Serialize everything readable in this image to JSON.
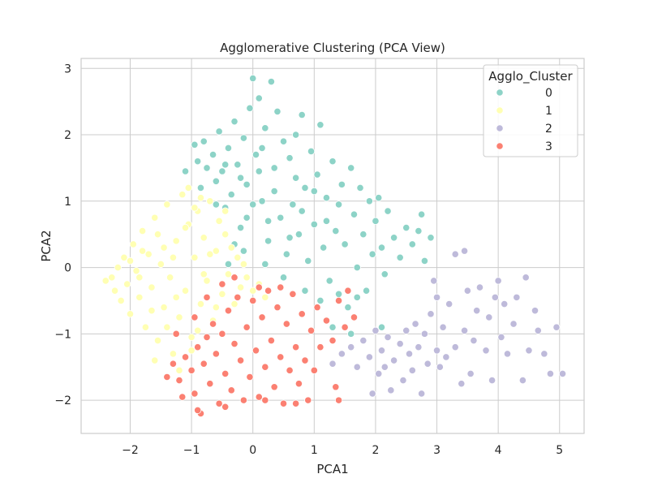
{
  "chart_data": {
    "type": "scatter",
    "title": "Agglomerative Clustering (PCA View)",
    "xlabel": "PCA1",
    "ylabel": "PCA2",
    "xlim": [
      -2.8,
      5.4
    ],
    "ylim": [
      -2.5,
      3.15
    ],
    "xticks": [
      "−2",
      "−1",
      "0",
      "1",
      "2",
      "3",
      "4",
      "5"
    ],
    "xtick_values": [
      -2,
      -1,
      0,
      1,
      2,
      3,
      4,
      5
    ],
    "yticks": [
      "−2",
      "−1",
      "0",
      "1",
      "2",
      "3"
    ],
    "ytick_values": [
      -2,
      -1,
      0,
      1,
      2,
      3
    ],
    "grid": true,
    "legend": {
      "title": "Agglo_Cluster",
      "position": "top-right",
      "labels": [
        "0",
        "1",
        "2",
        "3"
      ]
    },
    "colors": [
      "#8dd3c7",
      "#ffffb3",
      "#bebada",
      "#fb8072"
    ],
    "series": [
      {
        "name": "0",
        "points": [
          [
            -1.1,
            1.45
          ],
          [
            -0.95,
            1.85
          ],
          [
            -0.9,
            1.6
          ],
          [
            -0.85,
            1.2
          ],
          [
            -0.8,
            1.9
          ],
          [
            -0.75,
            1.5
          ],
          [
            -0.7,
            1.0
          ],
          [
            -0.65,
            1.7
          ],
          [
            -0.6,
            1.3
          ],
          [
            -0.55,
            2.05
          ],
          [
            -0.5,
            1.45
          ],
          [
            -0.45,
            0.9
          ],
          [
            -0.4,
            1.8
          ],
          [
            -0.35,
            1.1
          ],
          [
            -0.3,
            2.2
          ],
          [
            -0.25,
            1.55
          ],
          [
            -0.2,
            0.6
          ],
          [
            -0.15,
            1.95
          ],
          [
            -0.1,
            1.25
          ],
          [
            -0.05,
            2.4
          ],
          [
            0.0,
            2.85
          ],
          [
            0.05,
            1.7
          ],
          [
            0.1,
            2.55
          ],
          [
            0.15,
            1.0
          ],
          [
            0.2,
            2.1
          ],
          [
            0.25,
            0.4
          ],
          [
            0.3,
            2.8
          ],
          [
            0.35,
            1.5
          ],
          [
            0.4,
            2.35
          ],
          [
            0.45,
            0.75
          ],
          [
            0.5,
            1.9
          ],
          [
            0.55,
            0.2
          ],
          [
            0.6,
            1.65
          ],
          [
            0.65,
            0.95
          ],
          [
            0.7,
            2.0
          ],
          [
            0.75,
            0.5
          ],
          [
            0.8,
            2.3
          ],
          [
            0.85,
            1.2
          ],
          [
            0.9,
            0.1
          ],
          [
            0.95,
            1.75
          ],
          [
            1.0,
            0.65
          ],
          [
            1.05,
            1.4
          ],
          [
            1.1,
            2.15
          ],
          [
            1.15,
            0.3
          ],
          [
            1.2,
            1.05
          ],
          [
            1.25,
            -0.2
          ],
          [
            1.3,
            1.6
          ],
          [
            1.35,
            0.55
          ],
          [
            1.4,
            -0.4
          ],
          [
            1.45,
            1.25
          ],
          [
            1.5,
            0.35
          ],
          [
            1.55,
            -0.6
          ],
          [
            1.6,
            1.5
          ],
          [
            1.65,
            0.8
          ],
          [
            1.7,
            0.0
          ],
          [
            1.75,
            1.2
          ],
          [
            1.8,
            0.5
          ],
          [
            1.85,
            -0.35
          ],
          [
            1.9,
            1.0
          ],
          [
            1.95,
            0.2
          ],
          [
            2.0,
            0.7
          ],
          [
            2.05,
            1.05
          ],
          [
            2.1,
            0.3
          ],
          [
            2.15,
            -0.1
          ],
          [
            2.2,
            0.85
          ],
          [
            2.3,
            0.45
          ],
          [
            2.4,
            0.15
          ],
          [
            2.5,
            0.6
          ],
          [
            2.6,
            0.35
          ],
          [
            2.7,
            0.55
          ],
          [
            2.75,
            0.8
          ],
          [
            2.8,
            0.1
          ],
          [
            2.9,
            0.45
          ],
          [
            -0.6,
            0.95
          ],
          [
            -0.3,
            0.35
          ],
          [
            0.0,
            0.95
          ],
          [
            -0.2,
            1.35
          ],
          [
            0.1,
            1.45
          ],
          [
            0.35,
            1.15
          ],
          [
            0.6,
            0.45
          ],
          [
            0.8,
            0.85
          ],
          [
            1.0,
            1.15
          ],
          [
            1.2,
            0.7
          ],
          [
            1.4,
            0.95
          ],
          [
            0.2,
            0.05
          ],
          [
            0.5,
            -0.15
          ],
          [
            0.85,
            -0.35
          ],
          [
            1.1,
            -0.5
          ],
          [
            1.3,
            -0.9
          ],
          [
            1.6,
            -1.0
          ],
          [
            2.1,
            -0.9
          ],
          [
            -0.4,
            0.05
          ],
          [
            -0.15,
            0.25
          ],
          [
            0.25,
            0.7
          ],
          [
            0.7,
            1.35
          ],
          [
            0.15,
            1.8
          ],
          [
            -0.45,
            1.55
          ],
          [
            -0.1,
            0.75
          ],
          [
            1.7,
            -0.45
          ]
        ]
      },
      {
        "name": "1",
        "points": [
          [
            -2.4,
            -0.2
          ],
          [
            -2.3,
            -0.15
          ],
          [
            -2.25,
            -0.35
          ],
          [
            -2.2,
            0.0
          ],
          [
            -2.15,
            -0.5
          ],
          [
            -2.1,
            0.15
          ],
          [
            -2.05,
            -0.25
          ],
          [
            -2.0,
            -0.7
          ],
          [
            -1.95,
            0.35
          ],
          [
            -1.9,
            -0.05
          ],
          [
            -1.85,
            -0.45
          ],
          [
            -1.8,
            0.55
          ],
          [
            -1.75,
            -0.9
          ],
          [
            -1.7,
            0.2
          ],
          [
            -1.65,
            -0.3
          ],
          [
            -1.6,
            0.75
          ],
          [
            -1.55,
            -1.1
          ],
          [
            -1.5,
            0.05
          ],
          [
            -1.45,
            -0.6
          ],
          [
            -1.4,
            0.95
          ],
          [
            -1.35,
            -0.15
          ],
          [
            -1.3,
            -1.3
          ],
          [
            -1.25,
            0.4
          ],
          [
            -1.2,
            -0.75
          ],
          [
            -1.15,
            1.1
          ],
          [
            -1.1,
            -0.35
          ],
          [
            -1.05,
            0.65
          ],
          [
            -1.0,
            -1.05
          ],
          [
            -0.95,
            0.15
          ],
          [
            -0.9,
            0.85
          ],
          [
            -0.85,
            -0.55
          ],
          [
            -0.8,
            0.45
          ],
          [
            -0.75,
            -0.2
          ],
          [
            -0.7,
            1.0
          ],
          [
            -0.65,
            -0.8
          ],
          [
            -0.6,
            0.25
          ],
          [
            -0.55,
            0.7
          ],
          [
            -0.5,
            -0.4
          ],
          [
            -0.45,
            0.5
          ],
          [
            -0.4,
            -0.1
          ],
          [
            -0.35,
            0.3
          ],
          [
            -0.3,
            -0.55
          ],
          [
            -0.25,
            0.15
          ],
          [
            -0.2,
            -0.3
          ],
          [
            -0.15,
            0.05
          ],
          [
            -0.1,
            -0.15
          ],
          [
            0.0,
            -0.35
          ],
          [
            0.1,
            -0.25
          ],
          [
            0.2,
            -0.45
          ],
          [
            -1.6,
            -1.4
          ],
          [
            -1.4,
            -0.9
          ],
          [
            -1.2,
            -1.55
          ],
          [
            -1.0,
            -1.25
          ],
          [
            -0.9,
            -0.95
          ],
          [
            -1.8,
            0.25
          ],
          [
            -1.55,
            0.5
          ],
          [
            -1.3,
            0.15
          ],
          [
            -1.1,
            0.6
          ],
          [
            -0.95,
            0.9
          ],
          [
            -0.8,
            -0.1
          ],
          [
            -0.6,
            -0.6
          ],
          [
            -1.45,
            0.3
          ],
          [
            -1.65,
            -0.65
          ],
          [
            -1.85,
            -0.15
          ],
          [
            -2.0,
            0.1
          ],
          [
            -1.25,
            -0.45
          ],
          [
            -0.7,
            0.2
          ],
          [
            -0.45,
            0.85
          ],
          [
            -1.05,
            1.2
          ],
          [
            -0.85,
            1.05
          ]
        ]
      },
      {
        "name": "2",
        "points": [
          [
            1.3,
            -1.45
          ],
          [
            1.45,
            -1.3
          ],
          [
            1.6,
            -1.2
          ],
          [
            1.7,
            -1.5
          ],
          [
            1.8,
            -1.1
          ],
          [
            1.9,
            -1.35
          ],
          [
            2.0,
            -0.95
          ],
          [
            2.05,
            -1.6
          ],
          [
            2.1,
            -1.25
          ],
          [
            2.2,
            -1.05
          ],
          [
            2.25,
            -1.85
          ],
          [
            2.3,
            -1.4
          ],
          [
            2.4,
            -1.15
          ],
          [
            2.45,
            -1.7
          ],
          [
            2.5,
            -0.95
          ],
          [
            2.55,
            -1.3
          ],
          [
            2.6,
            -1.55
          ],
          [
            2.65,
            -0.85
          ],
          [
            2.7,
            -1.2
          ],
          [
            2.75,
            -1.9
          ],
          [
            2.8,
            -1.0
          ],
          [
            2.85,
            -1.45
          ],
          [
            2.9,
            -0.7
          ],
          [
            3.0,
            -1.25
          ],
          [
            3.05,
            -1.5
          ],
          [
            3.1,
            -0.9
          ],
          [
            3.15,
            -1.35
          ],
          [
            3.2,
            -0.55
          ],
          [
            3.3,
            -1.2
          ],
          [
            3.4,
            -1.75
          ],
          [
            3.45,
            -0.95
          ],
          [
            3.5,
            -0.35
          ],
          [
            3.55,
            -1.6
          ],
          [
            3.6,
            -1.1
          ],
          [
            3.65,
            -0.65
          ],
          [
            3.7,
            -0.3
          ],
          [
            3.8,
            -1.25
          ],
          [
            3.85,
            -0.75
          ],
          [
            3.9,
            -1.7
          ],
          [
            3.95,
            -0.45
          ],
          [
            4.0,
            -0.2
          ],
          [
            4.05,
            -1.05
          ],
          [
            4.1,
            -0.55
          ],
          [
            4.15,
            -1.3
          ],
          [
            4.25,
            -0.85
          ],
          [
            4.3,
            -0.45
          ],
          [
            4.4,
            -1.7
          ],
          [
            4.45,
            -0.15
          ],
          [
            4.5,
            -1.25
          ],
          [
            4.6,
            -0.65
          ],
          [
            4.65,
            -0.95
          ],
          [
            4.75,
            -1.3
          ],
          [
            4.85,
            -1.6
          ],
          [
            4.95,
            -0.9
          ],
          [
            5.05,
            -1.6
          ],
          [
            3.0,
            -0.45
          ],
          [
            3.3,
            0.2
          ],
          [
            3.45,
            0.25
          ],
          [
            2.95,
            -0.2
          ],
          [
            1.95,
            -1.9
          ],
          [
            2.15,
            -1.5
          ]
        ]
      },
      {
        "name": "3",
        "points": [
          [
            -1.4,
            -1.65
          ],
          [
            -1.3,
            -1.45
          ],
          [
            -1.2,
            -1.7
          ],
          [
            -1.15,
            -1.95
          ],
          [
            -1.1,
            -1.35
          ],
          [
            -1.0,
            -1.55
          ],
          [
            -0.95,
            -1.9
          ],
          [
            -0.9,
            -1.2
          ],
          [
            -0.85,
            -2.2
          ],
          [
            -0.8,
            -1.45
          ],
          [
            -0.75,
            -1.05
          ],
          [
            -0.7,
            -1.75
          ],
          [
            -0.65,
            -0.85
          ],
          [
            -0.6,
            -1.3
          ],
          [
            -0.55,
            -2.05
          ],
          [
            -0.5,
            -1.0
          ],
          [
            -0.45,
            -1.6
          ],
          [
            -0.4,
            -0.65
          ],
          [
            -0.35,
            -1.85
          ],
          [
            -0.3,
            -1.15
          ],
          [
            -0.25,
            -0.45
          ],
          [
            -0.2,
            -1.4
          ],
          [
            -0.15,
            -2.0
          ],
          [
            -0.1,
            -0.9
          ],
          [
            -0.05,
            -1.65
          ],
          [
            0.0,
            -0.5
          ],
          [
            0.05,
            -1.25
          ],
          [
            0.1,
            -1.95
          ],
          [
            0.15,
            -0.75
          ],
          [
            0.2,
            -1.5
          ],
          [
            0.25,
            -0.35
          ],
          [
            0.3,
            -1.1
          ],
          [
            0.35,
            -1.8
          ],
          [
            0.4,
            -0.6
          ],
          [
            0.45,
            -1.35
          ],
          [
            0.5,
            -2.05
          ],
          [
            0.55,
            -0.85
          ],
          [
            0.6,
            -1.55
          ],
          [
            0.65,
            -0.4
          ],
          [
            0.7,
            -1.2
          ],
          [
            0.75,
            -1.75
          ],
          [
            0.8,
            -0.7
          ],
          [
            0.85,
            -1.4
          ],
          [
            0.9,
            -2.0
          ],
          [
            0.95,
            -0.95
          ],
          [
            1.0,
            -1.55
          ],
          [
            1.05,
            -0.6
          ],
          [
            1.1,
            -1.2
          ],
          [
            1.2,
            -0.8
          ],
          [
            1.3,
            -1.1
          ],
          [
            1.4,
            -0.5
          ],
          [
            1.5,
            -0.9
          ],
          [
            1.55,
            -0.35
          ],
          [
            1.65,
            -0.75
          ],
          [
            -1.25,
            -1.0
          ],
          [
            -0.95,
            -0.75
          ],
          [
            -0.75,
            -0.45
          ],
          [
            -0.5,
            -0.25
          ],
          [
            -0.3,
            -0.15
          ],
          [
            0.1,
            -0.3
          ],
          [
            0.45,
            -0.3
          ],
          [
            0.7,
            -2.05
          ],
          [
            -0.45,
            -2.1
          ],
          [
            0.2,
            -2.0
          ],
          [
            -0.9,
            -2.15
          ],
          [
            1.35,
            -1.8
          ],
          [
            1.4,
            -2.0
          ]
        ]
      }
    ]
  }
}
